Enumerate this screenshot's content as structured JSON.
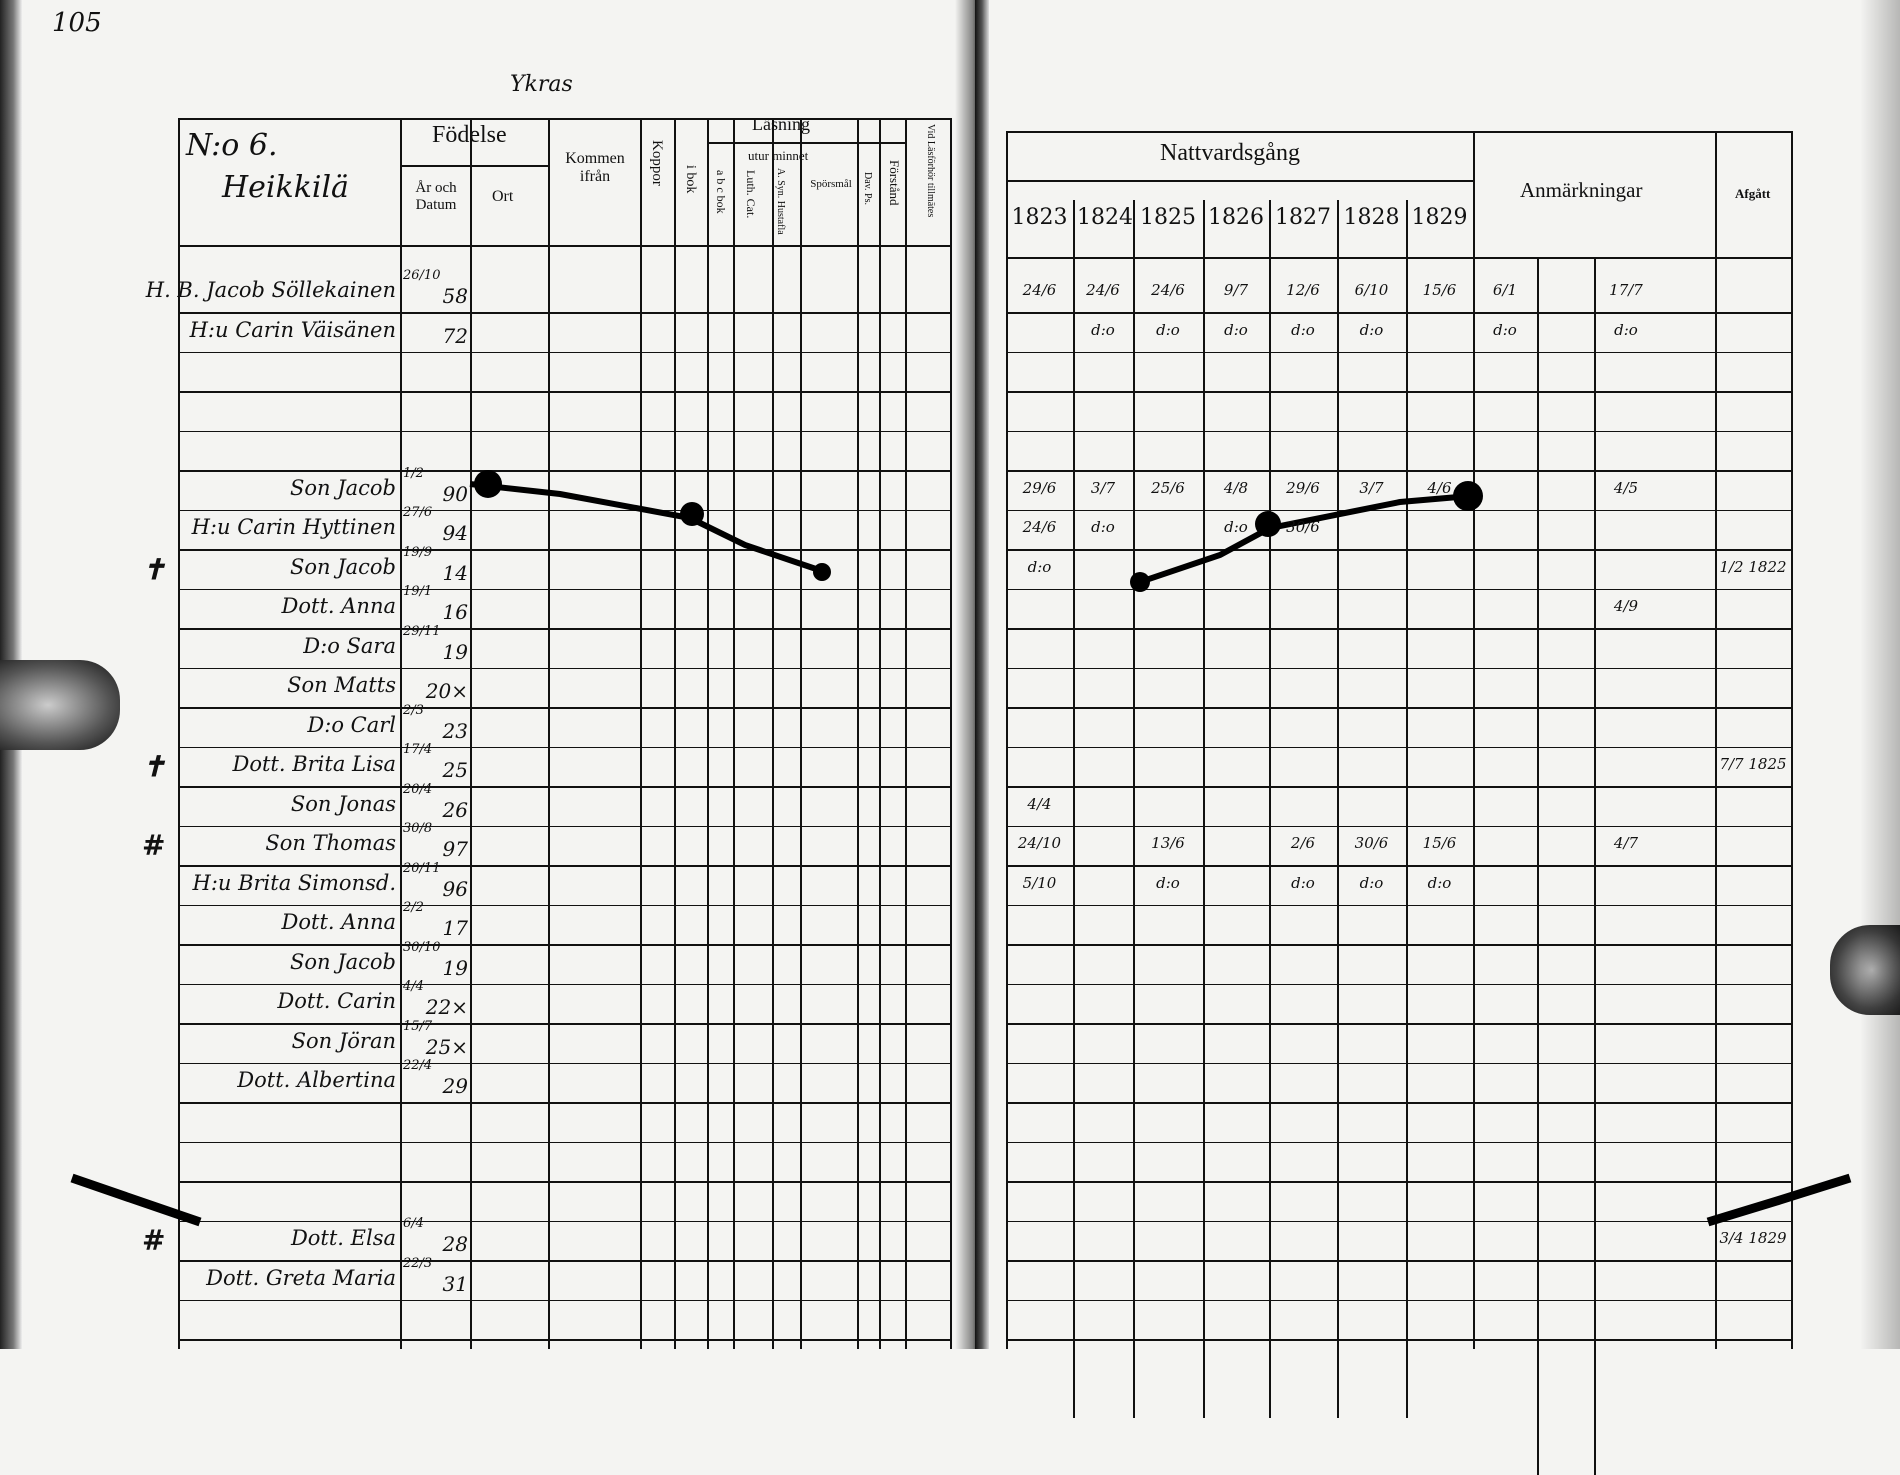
{
  "page_number": "105",
  "top_note": "Ykras",
  "left_page": {
    "household_number": "N:o 6.",
    "farm_name": "Heikkilä",
    "headers": {
      "fodelse": "Födelse",
      "ar_och_datum": "År och Datum",
      "ort": "Ort",
      "kommen_ifran": "Kommen ifrån",
      "koppor": "Koppor",
      "lasning": "Läsning",
      "utur_minnet": "utur minnet",
      "i_bok": "i bok",
      "abc_bok": "a b c bok",
      "luth_cat": "Luth. Cat.",
      "a_syn_hustafla": "A. Syn. Hustafla",
      "sporsmal": "Spörsmål",
      "dav_ps": "Dav. Ps.",
      "forstand": "Förstånd",
      "vid_lasforhor": "Vid Läsförhör tillmätes"
    },
    "persons": [
      {
        "row": 0,
        "name": "H. B. Jacob Söllekainen",
        "date": "26/10",
        "year": "58"
      },
      {
        "row": 1,
        "name": "H:u Carin Väisänen",
        "date": "",
        "year": "72"
      },
      {
        "row": 5,
        "name": "Son Jacob",
        "date": "1/2",
        "year": "90"
      },
      {
        "row": 6,
        "name": "H:u Carin Hyttinen",
        "date": "27/6",
        "year": "94"
      },
      {
        "row": 7,
        "name": "Son Jacob",
        "date": "19/9",
        "year": "14",
        "mark": "✝"
      },
      {
        "row": 8,
        "name": "Dott. Anna",
        "date": "19/1",
        "year": "16"
      },
      {
        "row": 9,
        "name": "D:o Sara",
        "date": "29/11",
        "year": "19"
      },
      {
        "row": 10,
        "name": "Son Matts",
        "date": "",
        "year": "20×"
      },
      {
        "row": 11,
        "name": "D:o Carl",
        "date": "2/3",
        "year": "23"
      },
      {
        "row": 12,
        "name": "Dott. Brita Lisa",
        "date": "17/4",
        "year": "25",
        "mark": "✝"
      },
      {
        "row": 13,
        "name": "Son Jonas",
        "date": "20/4",
        "year": "26"
      },
      {
        "row": 14,
        "name": "Son Thomas",
        "date": "30/8",
        "year": "97",
        "mark": "#"
      },
      {
        "row": 15,
        "name": "H:u Brita Simonsd.",
        "date": "20/11",
        "year": "96"
      },
      {
        "row": 16,
        "name": "Dott. Anna",
        "date": "2/2",
        "year": "17"
      },
      {
        "row": 17,
        "name": "Son Jacob",
        "date": "30/10",
        "year": "19"
      },
      {
        "row": 18,
        "name": "Dott. Carin",
        "date": "4/4",
        "year": "22×"
      },
      {
        "row": 19,
        "name": "Son Jöran",
        "date": "15/7",
        "year": "25×"
      },
      {
        "row": 20,
        "name": "Dott. Albertina",
        "date": "22/4",
        "year": "29"
      },
      {
        "row": 24,
        "name": "Dott. Elsa",
        "date": "6/4",
        "year": "28",
        "mark": "#"
      },
      {
        "row": 25,
        "name": "Dott. Greta Maria",
        "date": "22/3",
        "year": "31"
      }
    ]
  },
  "right_page": {
    "headers": {
      "nattvardsgang": "Nattvardsgång",
      "years": [
        "1823",
        "1824",
        "1825",
        "1826",
        "1827",
        "1828",
        "1829"
      ],
      "anmarkningar": "Anmärkningar",
      "afgatt": "Afgått"
    },
    "entries": [
      {
        "row": 0,
        "col": 0,
        "text": "24/6"
      },
      {
        "row": 0,
        "col": 1,
        "text": "24/6"
      },
      {
        "row": 0,
        "col": 2,
        "text": "24/6"
      },
      {
        "row": 0,
        "col": 3,
        "text": "9/7"
      },
      {
        "row": 0,
        "col": 4,
        "text": "12/6"
      },
      {
        "row": 0,
        "col": 5,
        "text": "6/10"
      },
      {
        "row": 0,
        "col": 6,
        "text": "15/6"
      },
      {
        "row": 0,
        "col": 7,
        "text": "6/1"
      },
      {
        "row": 0,
        "col": 8,
        "text": "17/7"
      },
      {
        "row": 1,
        "col": 1,
        "text": "d:o"
      },
      {
        "row": 1,
        "col": 2,
        "text": "d:o"
      },
      {
        "row": 1,
        "col": 3,
        "text": "d:o"
      },
      {
        "row": 1,
        "col": 4,
        "text": "d:o"
      },
      {
        "row": 1,
        "col": 5,
        "text": "d:o"
      },
      {
        "row": 1,
        "col": 7,
        "text": "d:o"
      },
      {
        "row": 1,
        "col": 8,
        "text": "d:o"
      },
      {
        "row": 5,
        "col": 0,
        "text": "29/6"
      },
      {
        "row": 5,
        "col": 1,
        "text": "3/7"
      },
      {
        "row": 5,
        "col": 2,
        "text": "25/6"
      },
      {
        "row": 5,
        "col": 3,
        "text": "4/8"
      },
      {
        "row": 5,
        "col": 4,
        "text": "29/6"
      },
      {
        "row": 5,
        "col": 5,
        "text": "3/7"
      },
      {
        "row": 5,
        "col": 6,
        "text": "4/6"
      },
      {
        "row": 5,
        "col": 8,
        "text": "4/5"
      },
      {
        "row": 6,
        "col": 0,
        "text": "24/6"
      },
      {
        "row": 6,
        "col": 1,
        "text": "d:o"
      },
      {
        "row": 6,
        "col": 3,
        "text": "d:o"
      },
      {
        "row": 6,
        "col": 4,
        "text": "30/6"
      },
      {
        "row": 7,
        "col": 0,
        "text": "d:o"
      },
      {
        "row": 7,
        "col": 9,
        "text": "1/2 1822"
      },
      {
        "row": 8,
        "col": 8,
        "text": "4/9"
      },
      {
        "row": 12,
        "col": 9,
        "text": "7/7 1825"
      },
      {
        "row": 13,
        "col": 0,
        "text": "4/4"
      },
      {
        "row": 14,
        "col": 0,
        "text": "24/10"
      },
      {
        "row": 14,
        "col": 2,
        "text": "13/6"
      },
      {
        "row": 14,
        "col": 4,
        "text": "2/6"
      },
      {
        "row": 14,
        "col": 5,
        "text": "30/6"
      },
      {
        "row": 14,
        "col": 6,
        "text": "15/6"
      },
      {
        "row": 14,
        "col": 8,
        "text": "4/7"
      },
      {
        "row": 15,
        "col": 0,
        "text": "5/10"
      },
      {
        "row": 15,
        "col": 2,
        "text": "d:o"
      },
      {
        "row": 15,
        "col": 4,
        "text": "d:o"
      },
      {
        "row": 15,
        "col": 5,
        "text": "d:o"
      },
      {
        "row": 15,
        "col": 6,
        "text": "d:o"
      },
      {
        "row": 24,
        "col": 9,
        "text": "3/4 1829"
      }
    ]
  }
}
